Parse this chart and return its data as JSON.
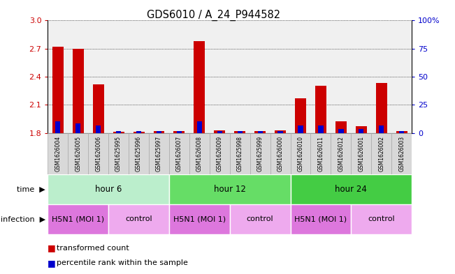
{
  "title": "GDS6010 / A_24_P944582",
  "samples": [
    "GSM1626004",
    "GSM1626005",
    "GSM1626006",
    "GSM1625995",
    "GSM1625996",
    "GSM1625997",
    "GSM1626007",
    "GSM1626008",
    "GSM1626009",
    "GSM1625998",
    "GSM1625999",
    "GSM1626000",
    "GSM1626010",
    "GSM1626011",
    "GSM1626012",
    "GSM1626001",
    "GSM1626002",
    "GSM1626003"
  ],
  "red_values": [
    2.72,
    2.7,
    2.32,
    1.81,
    1.81,
    1.82,
    1.82,
    2.78,
    1.83,
    1.82,
    1.82,
    1.83,
    2.17,
    2.3,
    1.92,
    1.87,
    2.33,
    1.82
  ],
  "blue_values": [
    0.12,
    0.1,
    0.08,
    0.02,
    0.02,
    0.02,
    0.02,
    0.12,
    0.02,
    0.02,
    0.02,
    0.02,
    0.08,
    0.08,
    0.04,
    0.04,
    0.08,
    0.02
  ],
  "ymin": 1.8,
  "ymax": 3.0,
  "yticks_left": [
    1.8,
    2.1,
    2.4,
    2.7,
    3.0
  ],
  "yticks_right": [
    0,
    25,
    50,
    75,
    100
  ],
  "yright_labels": [
    "0",
    "25",
    "50",
    "75",
    "100%"
  ],
  "left_color": "#cc0000",
  "right_color": "#0000cc",
  "bar_width": 0.55,
  "blue_bar_width": 0.25,
  "groups": [
    {
      "label": "hour 6",
      "start": 0,
      "end": 6,
      "color": "#bbeecc"
    },
    {
      "label": "hour 12",
      "start": 6,
      "end": 12,
      "color": "#66dd66"
    },
    {
      "label": "hour 24",
      "start": 12,
      "end": 18,
      "color": "#44cc44"
    }
  ],
  "infections": [
    {
      "label": "H5N1 (MOI 1)",
      "start": 0,
      "end": 3,
      "color": "#dd77dd"
    },
    {
      "label": "control",
      "start": 3,
      "end": 6,
      "color": "#eeaaee"
    },
    {
      "label": "H5N1 (MOI 1)",
      "start": 6,
      "end": 9,
      "color": "#dd77dd"
    },
    {
      "label": "control",
      "start": 9,
      "end": 12,
      "color": "#eeaaee"
    },
    {
      "label": "H5N1 (MOI 1)",
      "start": 12,
      "end": 15,
      "color": "#dd77dd"
    },
    {
      "label": "control",
      "start": 15,
      "end": 18,
      "color": "#eeaaee"
    }
  ],
  "time_label": "time",
  "infection_label": "infection",
  "legend_red": "transformed count",
  "legend_blue": "percentile rank within the sample",
  "axis_bg": "#f0f0f0",
  "sample_box_color": "#d8d8d8",
  "sample_box_edge": "#aaaaaa"
}
